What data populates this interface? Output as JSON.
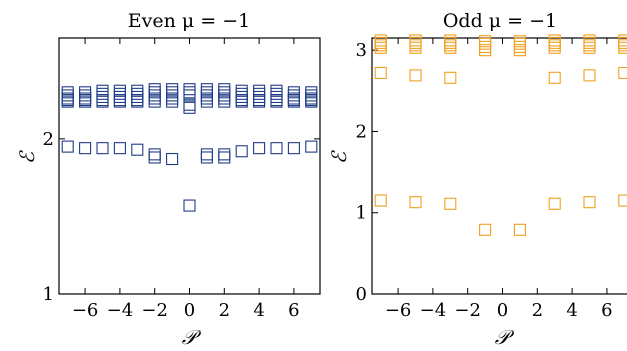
{
  "chart_data": [
    {
      "type": "scatter",
      "title": "Even μ = −1",
      "xlabel": "𝒫",
      "ylabel": "ℰ",
      "xlim": [
        -7.5,
        7.5
      ],
      "ylim": [
        1,
        2.65
      ],
      "xticks": [
        -6,
        -4,
        -2,
        0,
        2,
        4,
        6
      ],
      "xtick_labels": [
        "−6",
        "−4",
        "−2",
        "0",
        "2",
        "4",
        "6"
      ],
      "yticks": [
        1,
        2
      ],
      "ytick_labels": [
        "1",
        "2"
      ],
      "marker": "open-square",
      "color": "#1f3c88",
      "series": [
        {
          "x": [
            -7,
            -7,
            -7,
            -7,
            -7,
            -6,
            -6,
            -6,
            -6,
            -6,
            -5,
            -5,
            -5,
            -5,
            -5,
            -4,
            -4,
            -4,
            -4,
            -4,
            -3,
            -3,
            -3,
            -3,
            -3,
            -2,
            -2,
            -2,
            -2,
            -2,
            -1,
            -1,
            -1,
            -1,
            -1,
            0,
            0,
            0,
            0,
            0,
            1,
            1,
            1,
            1,
            1,
            2,
            2,
            2,
            2,
            2,
            3,
            3,
            3,
            3,
            3,
            4,
            4,
            4,
            4,
            4,
            5,
            5,
            5,
            5,
            5,
            6,
            6,
            6,
            6,
            6,
            7,
            7,
            7,
            7,
            7,
            -7,
            -6,
            -5,
            -4,
            -3,
            -2,
            -2,
            -1,
            0,
            1,
            1,
            2,
            2,
            3,
            4,
            5,
            6,
            7
          ],
          "y": [
            2.3,
            2.28,
            2.26,
            2.25,
            2.24,
            2.3,
            2.28,
            2.26,
            2.25,
            2.24,
            2.31,
            2.29,
            2.27,
            2.25,
            2.24,
            2.31,
            2.29,
            2.27,
            2.25,
            2.24,
            2.31,
            2.29,
            2.27,
            2.25,
            2.24,
            2.32,
            2.3,
            2.28,
            2.26,
            2.24,
            2.32,
            2.3,
            2.28,
            2.26,
            2.24,
            2.32,
            2.3,
            2.28,
            2.22,
            2.2,
            2.32,
            2.3,
            2.28,
            2.26,
            2.24,
            2.32,
            2.3,
            2.28,
            2.26,
            2.24,
            2.31,
            2.29,
            2.27,
            2.25,
            2.24,
            2.31,
            2.29,
            2.27,
            2.25,
            2.24,
            2.31,
            2.29,
            2.27,
            2.25,
            2.24,
            2.3,
            2.28,
            2.26,
            2.25,
            2.24,
            2.3,
            2.28,
            2.26,
            2.25,
            2.24,
            1.95,
            1.94,
            1.94,
            1.94,
            1.93,
            1.9,
            1.88,
            1.87,
            1.57,
            1.88,
            1.9,
            1.88,
            1.9,
            1.92,
            1.94,
            1.94,
            1.94,
            1.95
          ]
        }
      ]
    },
    {
      "type": "scatter",
      "title": "Odd μ = −1",
      "xlabel": "𝒫",
      "ylabel": "ℰ",
      "xlim": [
        -7.5,
        7.5
      ],
      "ylim": [
        0,
        3.15
      ],
      "xticks": [
        -6,
        -4,
        -2,
        0,
        2,
        4,
        6
      ],
      "xtick_labels": [
        "−6",
        "−4",
        "−2",
        "0",
        "2",
        "4",
        "6"
      ],
      "yticks": [
        0,
        1,
        2,
        3
      ],
      "ytick_labels": [
        "0",
        "1",
        "2",
        "3"
      ],
      "marker": "open-square",
      "color": "#f0a020",
      "series": [
        {
          "x": [
            -7,
            -7,
            -7,
            -7,
            -5,
            -5,
            -5,
            -5,
            -3,
            -3,
            -3,
            -3,
            -1,
            -1,
            -1,
            -1,
            1,
            1,
            1,
            1,
            3,
            3,
            3,
            3,
            5,
            5,
            5,
            5,
            7,
            7,
            7,
            7,
            -7,
            -5,
            -3,
            3,
            5,
            7,
            -7,
            -5,
            -3,
            -1,
            1,
            3,
            5,
            7
          ],
          "y": [
            3.12,
            3.09,
            3.06,
            3.03,
            3.12,
            3.09,
            3.06,
            3.03,
            3.12,
            3.09,
            3.06,
            3.03,
            3.11,
            3.08,
            3.04,
            3.0,
            3.11,
            3.08,
            3.04,
            3.0,
            3.12,
            3.09,
            3.06,
            3.03,
            3.12,
            3.09,
            3.06,
            3.03,
            3.12,
            3.09,
            3.06,
            3.03,
            2.72,
            2.69,
            2.66,
            2.66,
            2.69,
            2.72,
            1.15,
            1.13,
            1.11,
            0.79,
            0.79,
            1.11,
            1.13,
            1.15
          ]
        }
      ]
    }
  ]
}
